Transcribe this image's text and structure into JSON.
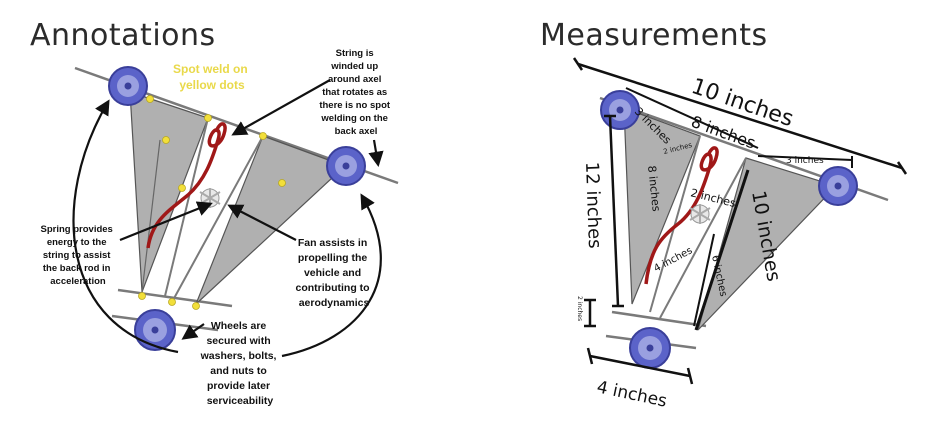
{
  "titles": {
    "left": "Annotations",
    "right": "Measurements"
  },
  "colors": {
    "wheel": "#5b63c9",
    "frame": "#a9a9a9",
    "rod": "#7a7a7a",
    "spring": "#a01818",
    "weld": "#f2df3a",
    "weld_text": "#e9d94a"
  },
  "annotations": {
    "spot_weld": [
      "Spot weld on",
      "yellow dots"
    ],
    "string": [
      "String is",
      "winded up",
      "around axel",
      "that rotates as",
      "there is no spot",
      "welding on the",
      "back axel"
    ],
    "spring": [
      "Spring provides",
      "energy to the",
      "string to assist",
      "the back rod in",
      "acceleration"
    ],
    "fan": [
      "Fan assists in",
      "propelling the",
      "vehicle and",
      "contributing to",
      "aerodynamics"
    ],
    "wheels": [
      "Wheels are",
      "secured with",
      "washers, bolts,",
      "and nuts to",
      "provide later",
      "serviceability"
    ]
  },
  "measurements": {
    "ten_top": "10 inches",
    "eight": "8 inches",
    "three_left": "3 inches",
    "two_small": "2 inches",
    "three_right": "3 inches",
    "eight_vertical": "8 inches",
    "twelve": "12 inches",
    "two_mid": "2 inches",
    "ten_vertical": "10 inches",
    "four_inner": "4 inches",
    "six": "6 inches",
    "two_left": "2 inches",
    "four_bottom": "4 inches"
  }
}
